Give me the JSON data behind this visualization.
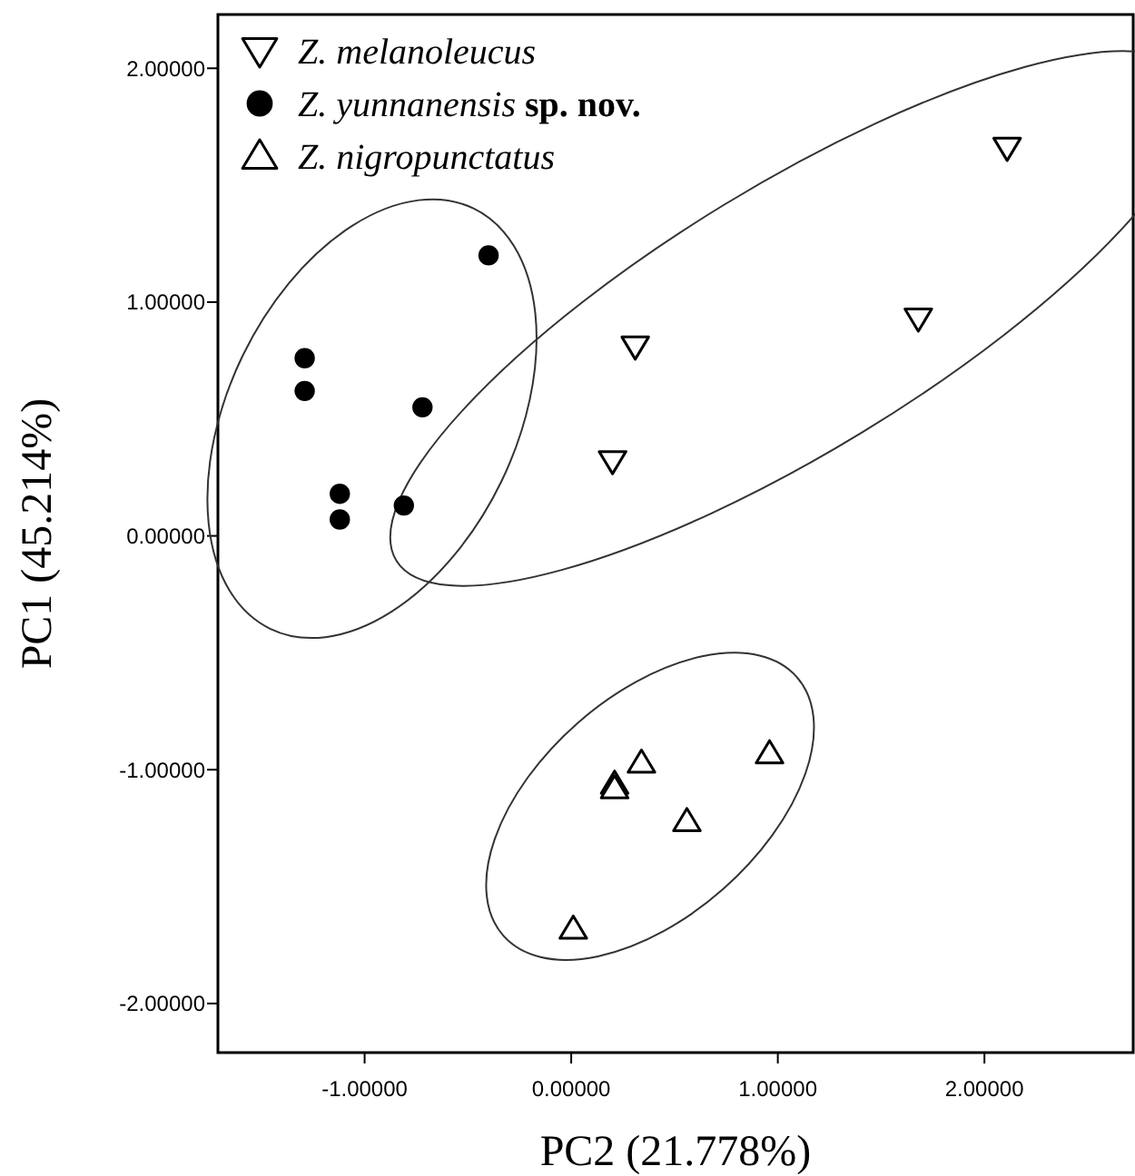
{
  "chart_data": {
    "type": "scatter",
    "xlabel": "PC2 (21.778%)",
    "ylabel": "PC1 (45.214%)",
    "xlim": [
      -1.71,
      2.72
    ],
    "ylim": [
      -2.21,
      2.23
    ],
    "xticks": [
      {
        "value": -1,
        "label": "-1.00000"
      },
      {
        "value": 0,
        "label": "0.00000"
      },
      {
        "value": 1,
        "label": "1.00000"
      },
      {
        "value": 2,
        "label": "2.00000"
      }
    ],
    "yticks": [
      {
        "value": -2,
        "label": "-2.00000"
      },
      {
        "value": -1,
        "label": "-1.00000"
      },
      {
        "value": 0,
        "label": "0.00000"
      },
      {
        "value": 1,
        "label": "1.00000"
      },
      {
        "value": 2,
        "label": "2.00000"
      }
    ],
    "grid": false,
    "legend": "top left",
    "series": [
      {
        "name": "Z. melanoleucus",
        "color": "#000000",
        "marker": "triangle-down",
        "x": [
          0.31,
          0.2,
          1.68,
          2.11
        ],
        "values": [
          0.81,
          0.32,
          0.93,
          1.66
        ]
      },
      {
        "name": "Z. yunnanensis sp. nov.",
        "color": "#000000",
        "marker": "circle",
        "x": [
          -0.4,
          -1.29,
          -1.29,
          -0.72,
          -1.12,
          -0.81,
          -1.12
        ],
        "values": [
          1.2,
          0.76,
          0.62,
          0.55,
          0.18,
          0.13,
          0.07
        ]
      },
      {
        "name": "Z. nigropunctatus",
        "color": "#000000",
        "marker": "triangle",
        "x": [
          0.96,
          0.34,
          0.21,
          0.21,
          0.56,
          0.01
        ],
        "values": [
          -0.93,
          -0.97,
          -1.06,
          -1.08,
          -1.22,
          -1.68
        ]
      }
    ]
  }
}
